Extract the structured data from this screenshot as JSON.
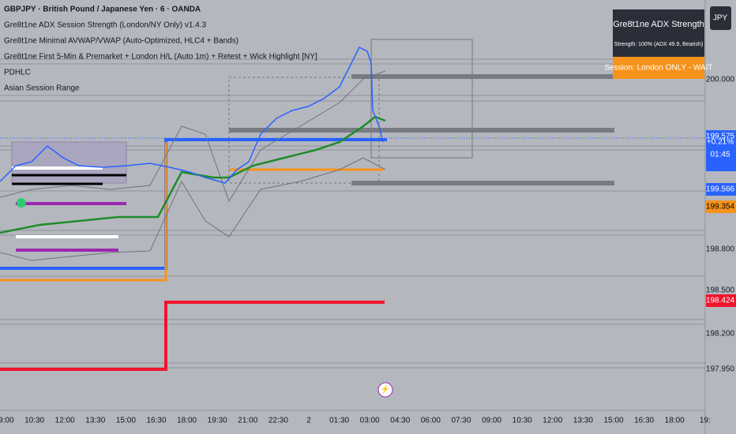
{
  "header": {
    "symbol": "GBPJPY · British Pound / Japanese Yen · 6 · OANDA",
    "indicators": [
      "Gre8t1ne ADX Session Strength (London/NY Only) v1.4.3",
      "Gre8t1ne Minimal AVWAP/VWAP (Auto-Optimized, HLC4 + Bands)",
      "Gre8t1ne First 5-Min & Premarket + London H/L (Auto 1m) + Retest + Wick Highlight [NY]",
      "PDHLC",
      "Asian Session Range"
    ]
  },
  "panel": {
    "title": "Gre8t1ne ADX Strength",
    "strength": "Strength: 100%  (ADX 49.9, Bearish)",
    "session": "Session: London ONLY  -  WAIT"
  },
  "currency_button": "JPY",
  "price_axis": {
    "ticks": [
      "200.000",
      "198.800",
      "198.500",
      "198.200",
      "197.950"
    ],
    "tags": [
      "199.575",
      "+0.21%",
      "01:45",
      "199.566",
      "199.354",
      "198.424"
    ]
  },
  "time_axis": [
    "09:00",
    "10:30",
    "12:00",
    "13:30",
    "15:00",
    "16:30",
    "18:00",
    "19:30",
    "21:00",
    "22:30",
    "2",
    "01:30",
    "03:00",
    "04:30",
    "06:00",
    "07:30",
    "09:00",
    "10:30",
    "12:00",
    "13:30",
    "15:00",
    "16:30",
    "18:00",
    "19:"
  ]
}
